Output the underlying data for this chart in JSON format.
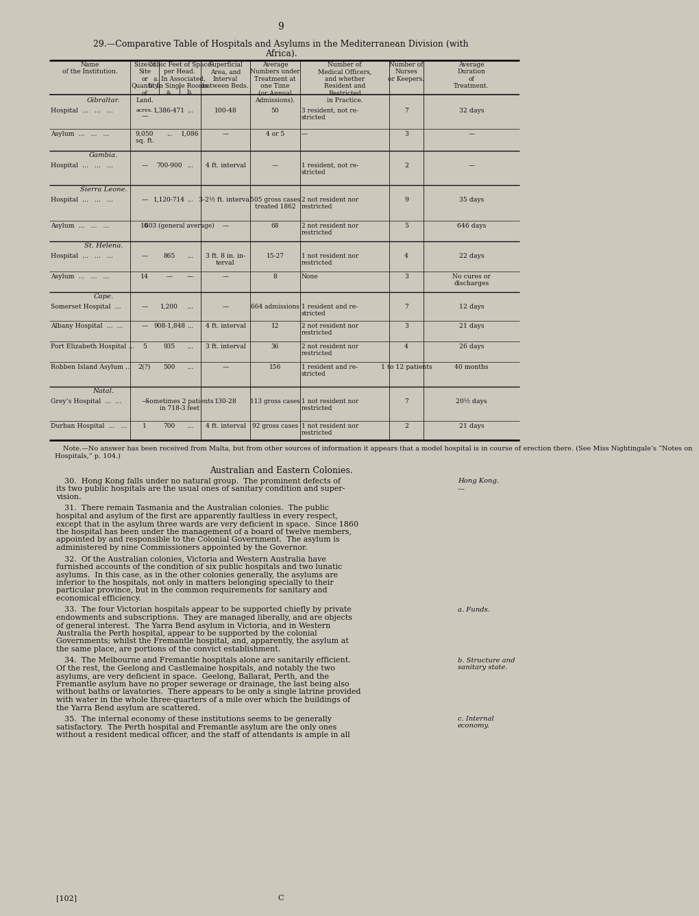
{
  "page_number": "9",
  "background_color": "#ccc8bc",
  "title_line1": "29.—Comparative Table of Hospitals and Asylums in the Mediterranean Division (with",
  "title_line2": "Africa).",
  "sections": [
    {
      "section_name": "Gibraltar.",
      "rows": [
        {
          "name": "Hospital  ...   ...   ...",
          "land": "—",
          "land_note": "acres.",
          "col_a": "1,386-471",
          "col_b": "...",
          "superficial": "100-48",
          "avg_numbers": "50",
          "medical": "3 resident, not re-\nstricted",
          "nurses": "7",
          "duration": "32 days"
        },
        {
          "name": "Asylum  ...   ...   ...",
          "land": "9,050\nsq. ft.",
          "col_a": "...",
          "col_b": "1,086",
          "superficial": "—",
          "avg_numbers": "4 or 5",
          "medical": "—",
          "nurses": "3",
          "duration": "—"
        }
      ]
    },
    {
      "section_name": "Gambia.",
      "rows": [
        {
          "name": "Hospital  ...   ...   ...",
          "land": "—",
          "col_a": "700-900",
          "col_b": "...",
          "superficial": "4 ft. interval",
          "avg_numbers": "—",
          "medical": "1 resident, not re-\nstricted",
          "nurses": "2",
          "duration": "—"
        }
      ]
    },
    {
      "section_name": "Sierra Leone.",
      "rows": [
        {
          "name": "Hospital  ...   ...   ...",
          "land": "—",
          "col_a": "1,120-714",
          "col_b": "...",
          "superficial": "3-2½ ft. interval",
          "avg_numbers": "505 gross cases\ntreated 1862",
          "medical": "2 not resident nor\nrestricted",
          "nurses": "9",
          "duration": "35 days"
        },
        {
          "name": "Asylum  ...   ...   ...",
          "land": "10",
          "col_a": "603 (general average)",
          "col_b": "",
          "superficial": "—",
          "avg_numbers": "68",
          "medical": "2 not resident nor\nrestricted",
          "nurses": "5",
          "duration": "646 days"
        }
      ]
    },
    {
      "section_name": "St. Helena.",
      "rows": [
        {
          "name": "Hospital  ...   ...   ...",
          "land": "—",
          "col_a": "865",
          "col_b": "...",
          "superficial": "3 ft. 8 in. in-\nterval",
          "avg_numbers": "15-27",
          "medical": "1 not resident nor\nrestricted",
          "nurses": "4",
          "duration": "22 days"
        },
        {
          "name": "Asylum  ...   ...   ...",
          "land": "14",
          "col_a": "—",
          "col_b": "—",
          "superficial": "—",
          "avg_numbers": "8",
          "medical": "None",
          "nurses": "3",
          "duration": "No cures or\ndischarges"
        }
      ]
    },
    {
      "section_name": "Cape.",
      "rows": [
        {
          "name": "Somerset Hospital  ...",
          "land": "—",
          "col_a": "1,200",
          "col_b": "...",
          "superficial": "—",
          "avg_numbers": "664 admissions",
          "medical": "1 resident and re-\nstricted",
          "nurses": "7",
          "duration": "12 days"
        },
        {
          "name": "Albany Hospital  ...  ...",
          "land": "—",
          "col_a": "908-1,848",
          "col_b": "...",
          "superficial": "4 ft. interval",
          "avg_numbers": "12",
          "medical": "2 not resident nor\nrestricted",
          "nurses": "3",
          "duration": "21 days"
        },
        {
          "name": "Port Elizabeth Hospital ...",
          "land": "5",
          "col_a": "935",
          "col_b": "...",
          "superficial": "3 ft. interval",
          "avg_numbers": "36",
          "medical": "2 not resident nor\nrestricted",
          "nurses": "4",
          "duration": "26 days"
        },
        {
          "name": "Robben Island Asylum ...",
          "land": "2(?)",
          "col_a": "500",
          "col_b": "...",
          "superficial": "—",
          "avg_numbers": "156",
          "medical": "1 resident and re-\nstricted",
          "nurses": "1 to 12 patients",
          "duration": "40 months"
        }
      ]
    },
    {
      "section_name": "Natal.",
      "rows": [
        {
          "name": "Grey’s Hospital  ...  ...",
          "land": "—",
          "col_a": "Sometimes 2 patients\nin 718-3 feet",
          "col_b": "",
          "superficial": "130-28",
          "avg_numbers": "113 gross cases",
          "medical": "1 not resident nor\nrestricted",
          "nurses": "7",
          "duration": "20½ days"
        },
        {
          "name": "Durban Hospital  ...   ...",
          "land": "1",
          "col_a": "700",
          "col_b": "...",
          "superficial": "4 ft. interval",
          "avg_numbers": "92 gross cases",
          "medical": "1 not resident nor\nrestricted",
          "nurses": "2",
          "duration": "21 days"
        }
      ]
    }
  ],
  "note_text": "Note.—No answer has been received from Malta, but from other sources of information it appears that a model hospital is in course of erection there. (See Miss Nightingale’s “Notes on\nHospitals,” p. 104.)",
  "section_title": "Australian and Eastern Colonies.",
  "paragraphs": [
    {
      "number": "30.",
      "side_label": "Hong Kong.",
      "side_dash": true,
      "lines": [
        "Hong Kong falls under no natural group.  The prominent defects of",
        "its two public hospitals are the usual ones of sanitary condition and super-",
        "vision."
      ]
    },
    {
      "number": "31.",
      "side_label": "",
      "lines": [
        "There remain Tasmania and the Australian colonies.  The public",
        "hospital and asylum of the first are apparently faultless in every respect,",
        "except that in the asylum three wards are very deficient in space.  Since 1860",
        "the hospital has been under the management of a board of twelve members,",
        "appointed by and responsible to the Colonial Government.  The asylum is",
        "administered by nine Commissioners appointed by the Governor."
      ]
    },
    {
      "number": "32.",
      "side_label": "",
      "lines": [
        "Of the Australian colonies, Victoria and Western Australia have",
        "furnished accounts of the condition of six public hospitals and two lunatic",
        "asylums.  In this case, as in the other colonies generally, the asylums are",
        "inferior to the hospitals, not only in matters belonging specially to their",
        "particular province, but in the common requirements for sanitary and",
        "economical efficiency."
      ]
    },
    {
      "number": "33.",
      "side_label": "a. Funds.",
      "lines": [
        "The four Victorian hospitals appear to be supported chiefly by private",
        "endowments and subscriptions.  They are managed liberally, and are objects",
        "of general interest.  The Yarra Bend asylum in Victoria, and in Western",
        "Australia the Perth hospital, appear to be supported by the colonial",
        "Governments; whilst the Fremantle hospital, and, apparently, the asylum at",
        "the same place, are portions of the convict establishment."
      ]
    },
    {
      "number": "34.",
      "side_label": "b. Structure and\nsanitary state.",
      "lines": [
        "The Melbourne and Fremantle hospitals alone are sanitarily efficient.",
        "Of the rest, the Geelong and Castlemaine hospitals, and notably the two",
        "asylums, are very deficient in space.  Geelong, Ballarat, Perth, and the",
        "Fremantle asylum have no proper sewerage or drainage, the last being also",
        "without baths or lavatories.  There appears to be only a single latrine provided",
        "with water in the whole three-quarters of a mile over which the buildings of",
        "the Yarra Bend asylum are scattered."
      ]
    },
    {
      "number": "35.",
      "side_label": "c. Internal\neconomy.",
      "lines": [
        "The internal economy of these institutions seems to be generally",
        "satisfactory.  The Perth hospital and Fremantle asylum are the only ones",
        "without a resident medical officer, and the staff of attendants is ample in all"
      ]
    }
  ],
  "footer_left": "[102]",
  "footer_right": "C",
  "text_color": "#111111",
  "line_color": "#111111"
}
